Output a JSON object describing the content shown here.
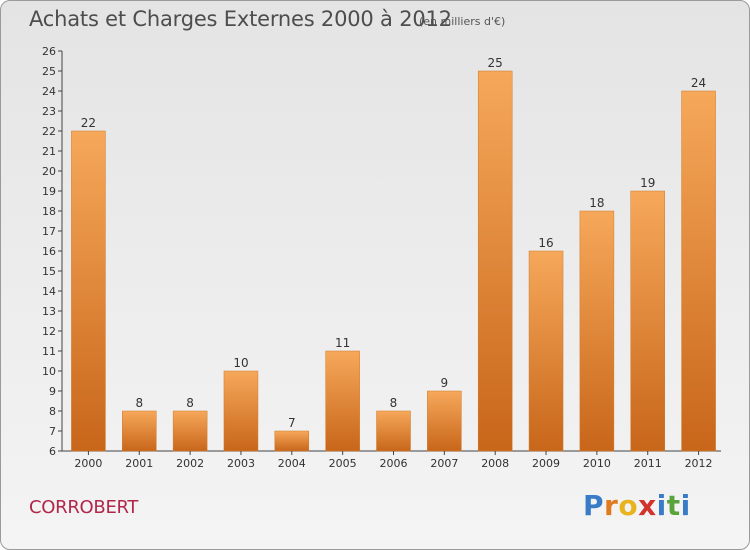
{
  "title": "Achats et Charges Externes 2000 à 2012",
  "unit_note": "(en milliers d'€)",
  "commune": "CORROBERT",
  "logo": {
    "letters": [
      "P",
      "r",
      "o",
      "x",
      "i",
      "t",
      "i"
    ],
    "colors": [
      "#3a7bc8",
      "#e07a1f",
      "#e8b31c",
      "#d0342c",
      "#3a7bc8",
      "#5aa33c",
      "#3a7bc8"
    ]
  },
  "colors": {
    "bar": "#e8842a",
    "bar_light": "#f6a85a",
    "bar_dark": "#c8661a"
  },
  "chart_data": {
    "type": "bar",
    "title": "Achats et Charges Externes 2000 à 2012",
    "categories": [
      "2000",
      "2001",
      "2002",
      "2003",
      "2004",
      "2005",
      "2006",
      "2007",
      "2008",
      "2009",
      "2010",
      "2011",
      "2012"
    ],
    "values": [
      22,
      8,
      8,
      10,
      7,
      11,
      8,
      9,
      25,
      16,
      18,
      19,
      24
    ],
    "ylim": [
      6,
      26
    ],
    "yticks": [
      6,
      7,
      8,
      9,
      10,
      11,
      12,
      13,
      14,
      15,
      16,
      17,
      18,
      19,
      20,
      21,
      22,
      23,
      24,
      25,
      26
    ],
    "grid": false,
    "xlabel": "",
    "ylabel": ""
  }
}
